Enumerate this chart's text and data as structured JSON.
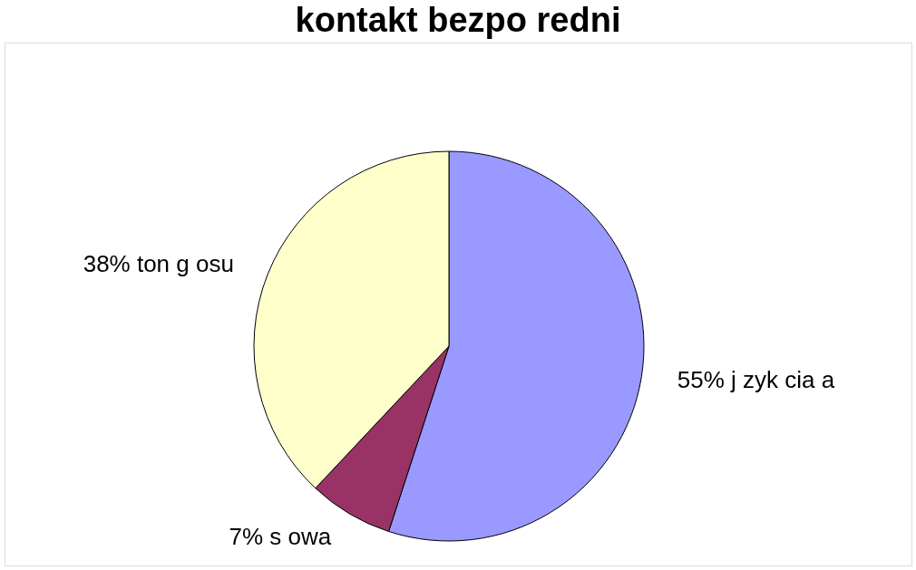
{
  "chart_data": {
    "type": "pie",
    "title": "kontakt bezpo  redni",
    "categories": [
      "55% j  zyk cia a",
      "7% s owa",
      "38% ton g osu"
    ],
    "values": [
      55,
      7,
      38
    ],
    "colors": [
      "#9999ff",
      "#993366",
      "#ffffcc"
    ],
    "legend": false
  }
}
